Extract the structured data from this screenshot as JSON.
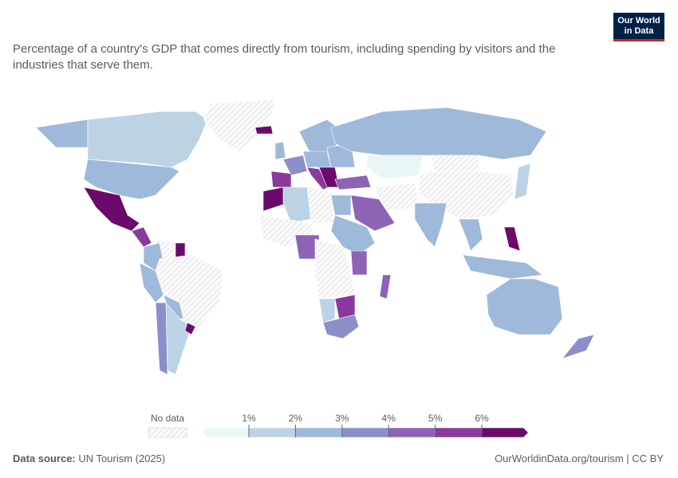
{
  "header": {
    "title": "Percentage of a country's GDP that comes directly from tourism, including spending by visitors and the industries that serve them.",
    "logo": [
      "Our World",
      "in Data"
    ]
  },
  "map": {
    "values": [
      2.8,
      1.5,
      null,
      2.8,
      8,
      5,
      null,
      7,
      2.5,
      2.5,
      null,
      2,
      3.5,
      1.8,
      7,
      7,
      2.5,
      2,
      3.5,
      5.5,
      2.5,
      5,
      6,
      2.5,
      2.8,
      4.5,
      0.8,
      null,
      null,
      1.8,
      null,
      4.5,
      2.5,
      2.8,
      6.5,
      2.5,
      2.8,
      3.5,
      7,
      1.5,
      null,
      2.5,
      null,
      4.5,
      2.5,
      null,
      4.2,
      null,
      1.8,
      5.5,
      3.5,
      4.5
    ]
  },
  "legend": {
    "no_data": "No data",
    "ticks": [
      {
        "value": 1,
        "label": "1%"
      },
      {
        "value": 2,
        "label": "2%"
      },
      {
        "value": 3,
        "label": "3%"
      },
      {
        "value": 4,
        "label": "4%"
      },
      {
        "value": 5,
        "label": "5%"
      },
      {
        "value": 6,
        "label": "6%"
      }
    ],
    "colors": [
      "#eaf5f7",
      "#bcd2e5",
      "#9eb9da",
      "#8b8ec8",
      "#8e63b6",
      "#8a3a9c",
      "#6b0a6b"
    ]
  },
  "footer": {
    "source_label": "Data source:",
    "source": "UN Tourism (2025)",
    "url": "OurWorldinData.org/tourism | CC BY"
  }
}
